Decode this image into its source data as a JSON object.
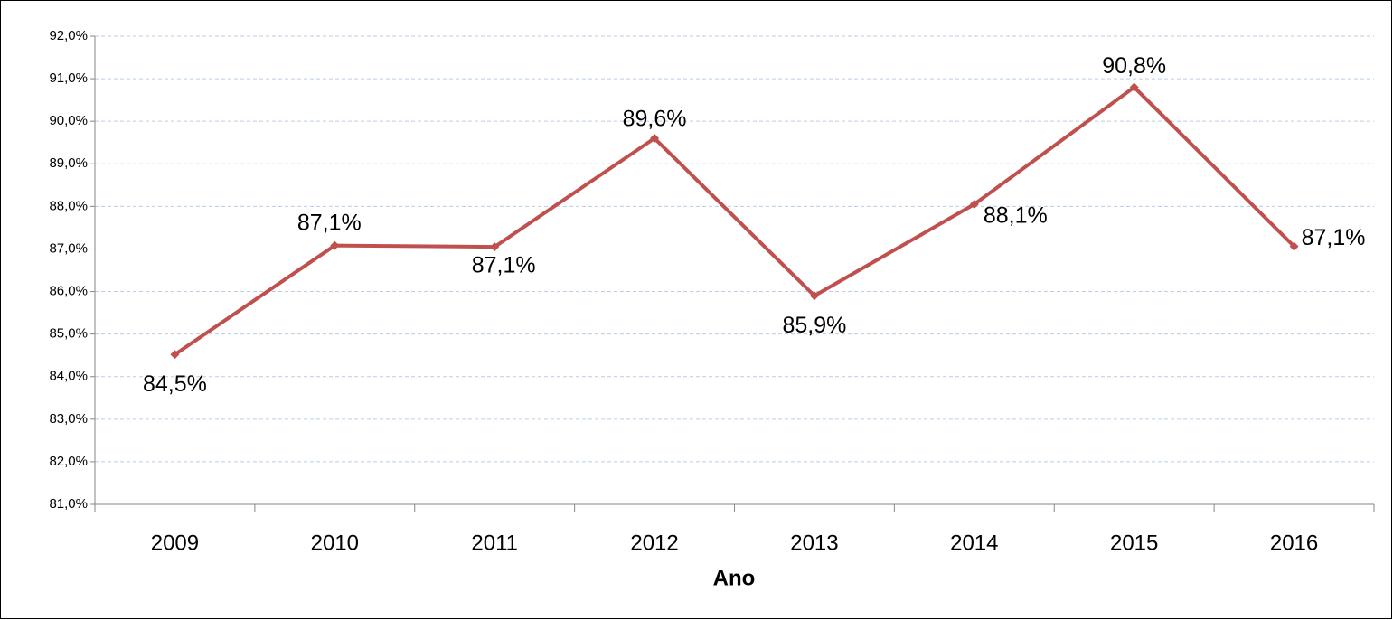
{
  "chart_data": {
    "type": "line",
    "x_label": "Ano",
    "categories": [
      "2009",
      "2010",
      "2011",
      "2012",
      "2013",
      "2014",
      "2015",
      "2016"
    ],
    "series": [
      {
        "color": "#c0504d",
        "values": [
          84.52,
          87.08,
          87.05,
          89.6,
          85.9,
          88.05,
          90.8,
          87.06
        ],
        "value_labels": [
          "84,5%",
          "87,1%",
          "87,1%",
          "89,6%",
          "85,9%",
          "88,1%",
          "90,8%",
          "87,1%"
        ]
      }
    ],
    "ylim": [
      81,
      92
    ],
    "yticks": [
      {
        "value": 81,
        "label": "81,0%"
      },
      {
        "value": 82,
        "label": "82,0%"
      },
      {
        "value": 83,
        "label": "83,0%"
      },
      {
        "value": 84,
        "label": "84,0%"
      },
      {
        "value": 85,
        "label": "85,0%"
      },
      {
        "value": 86,
        "label": "86,0%"
      },
      {
        "value": 87,
        "label": "87,0%"
      },
      {
        "value": 88,
        "label": "88,0%"
      },
      {
        "value": 89,
        "label": "89,0%"
      },
      {
        "value": 90,
        "label": "90,0%"
      },
      {
        "value": 91,
        "label": "91,0%"
      },
      {
        "value": 92,
        "label": "92,0%"
      }
    ],
    "grid": true
  }
}
